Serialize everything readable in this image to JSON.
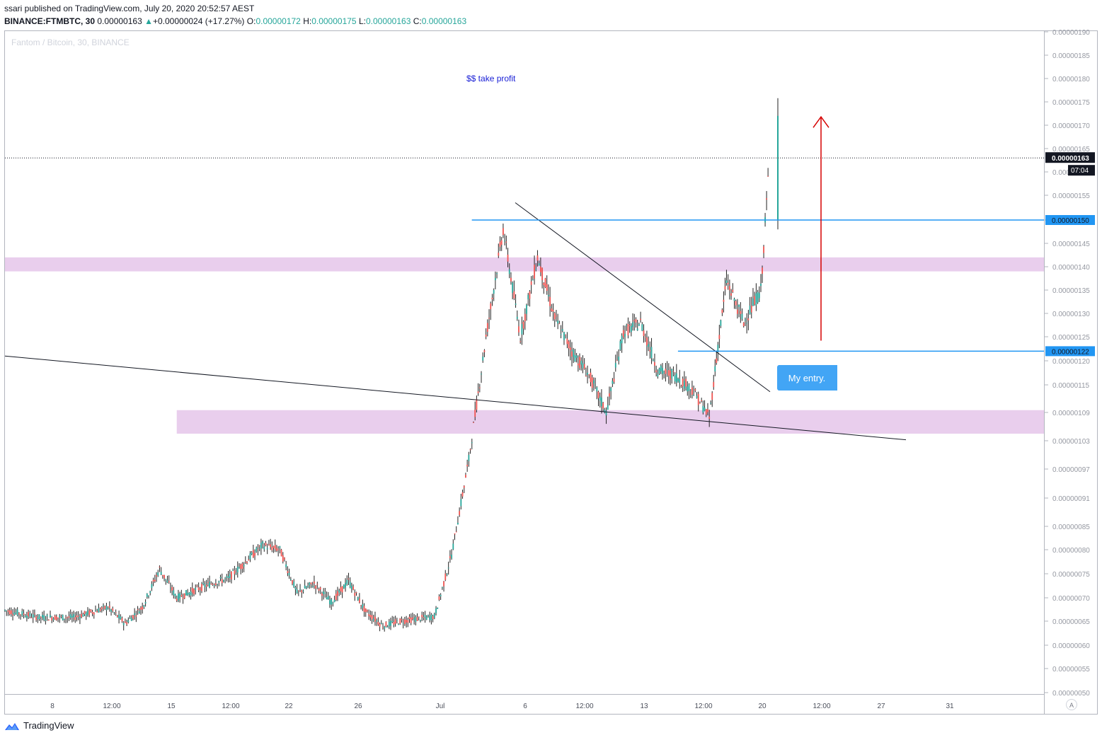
{
  "header": {
    "publisher_line": "ssari published on TradingView.com, July 20, 2020 20:52:57 AEST",
    "symbol": "BINANCE:FTMBTC, 30",
    "last_price": "0.00000163",
    "arrow": "▲",
    "change": "+0.00000024 (+17.27%)",
    "open_label": "O:",
    "open_value": "0.00000172",
    "high_label": "H:",
    "high_value": "0.00000175",
    "low_label": "L:",
    "low_value": "0.00000163",
    "close_label": "C:",
    "close_value": "0.00000163"
  },
  "footer": {
    "brand": "TradingView",
    "logo_icon": "tradingview-logo-icon"
  },
  "axis": {
    "auto_label": "A"
  },
  "colors": {
    "up": "#26a69a",
    "down": "#ef5350",
    "level": "#2196f3",
    "zone": "#e1bee7",
    "target": "#d50000",
    "callout": "#42a5f5"
  },
  "chart_data": {
    "type": "candlestick",
    "title": "Fantom / Bitcoin, 30, BINANCE",
    "ylim": [
      5e-07,
      1.9e-06
    ],
    "y_ticks": [
      "0.00000190",
      "0.00000185",
      "0.00000180",
      "0.00000175",
      "0.00000170",
      "0.00000165",
      "0.00000160",
      "0.00000155",
      "0.00000150",
      "0.00000145",
      "0.00000140",
      "0.00000135",
      "0.00000130",
      "0.00000125",
      "0.00000120",
      "0.00000115",
      "0.00000109",
      "0.00000103",
      "0.00000097",
      "0.00000091",
      "0.00000085",
      "0.00000080",
      "0.00000075",
      "0.00000070",
      "0.00000065",
      "0.00000060",
      "0.00000055",
      "0.00000050"
    ],
    "x_ticks": [
      "8",
      "12:00",
      "15",
      "12:00",
      "22",
      "26",
      "Jul",
      "6",
      "12:00",
      "13",
      "12:00",
      "20",
      "12:00",
      "27",
      "31"
    ],
    "price_series": [
      {
        "t": "Jun 6",
        "v": 6.73e-07
      },
      {
        "t": "Jun 8",
        "v": 6.58e-07
      },
      {
        "t": "Jun 10",
        "v": 6.58e-07
      },
      {
        "t": "Jun 12",
        "v": 6.8e-07
      },
      {
        "t": "Jun 13",
        "v": 6.45e-07
      },
      {
        "t": "Jun 14",
        "v": 6.8e-07
      },
      {
        "t": "Jun 15",
        "v": 7.6e-07
      },
      {
        "t": "Jun 16",
        "v": 7e-07
      },
      {
        "t": "Jun 18",
        "v": 7.3e-07
      },
      {
        "t": "Jun 19",
        "v": 7.4e-07
      },
      {
        "t": "Jun 21",
        "v": 8.1e-07
      },
      {
        "t": "Jun 22",
        "v": 8e-07
      },
      {
        "t": "Jun 23",
        "v": 7.1e-07
      },
      {
        "t": "Jun 24",
        "v": 7.3e-07
      },
      {
        "t": "Jun 25",
        "v": 6.9e-07
      },
      {
        "t": "Jun 26",
        "v": 7.35e-07
      },
      {
        "t": "Jun 27",
        "v": 6.7e-07
      },
      {
        "t": "Jun 28",
        "v": 6.4e-07
      },
      {
        "t": "Jun 29",
        "v": 6.5e-07
      },
      {
        "t": "Jun 30",
        "v": 6.55e-07
      },
      {
        "t": "Jul 1",
        "v": 6.6e-07
      },
      {
        "t": "Jul 2",
        "v": 7.9e-07
      },
      {
        "t": "Jul 3",
        "v": 9.9e-07
      },
      {
        "t": "Jul 4",
        "v": 1.25e-06
      },
      {
        "t": "Jul 5",
        "v": 1.48e-06
      },
      {
        "t": "Jul 6",
        "v": 1.25e-06
      },
      {
        "t": "Jul 7",
        "v": 1.42e-06
      },
      {
        "t": "Jul 8",
        "v": 1.29e-06
      },
      {
        "t": "Jul 9",
        "v": 1.22e-06
      },
      {
        "t": "Jul 10",
        "v": 1.17e-06
      },
      {
        "t": "Jul 11",
        "v": 1.09e-06
      },
      {
        "t": "Jul 12",
        "v": 1.26e-06
      },
      {
        "t": "Jul 13",
        "v": 1.28e-06
      },
      {
        "t": "Jul 14",
        "v": 1.18e-06
      },
      {
        "t": "Jul 15",
        "v": 1.17e-06
      },
      {
        "t": "Jul 16",
        "v": 1.14e-06
      },
      {
        "t": "Jul 17",
        "v": 1.08e-06
      },
      {
        "t": "Jul 17 12:00",
        "v": 1.23e-06
      },
      {
        "t": "Jul 18",
        "v": 1.37e-06
      },
      {
        "t": "Jul 19",
        "v": 1.28e-06
      },
      {
        "t": "Jul 20",
        "v": 1.35e-06
      },
      {
        "t": "Jul 20 12:00",
        "v": 1.63e-06
      }
    ],
    "current_price": 1.63e-06,
    "current_price_label": "0.00000163",
    "countdown": "07:04",
    "levels": [
      {
        "value": 1.5e-06,
        "label": "0.00000150",
        "from": "Jul 4"
      },
      {
        "value": 1.22e-06,
        "label": "0.00000122",
        "from": "Jul 16"
      }
    ],
    "zones": [
      {
        "from_value": 1.39e-06,
        "to_value": 1.42e-06,
        "from": "Jun 6"
      },
      {
        "from_value": 1.045e-06,
        "to_value": 1.095e-06,
        "from": "Jun 16"
      }
    ],
    "annotations": {
      "take_profit": "$$ take profit",
      "entry": "My entry."
    }
  }
}
